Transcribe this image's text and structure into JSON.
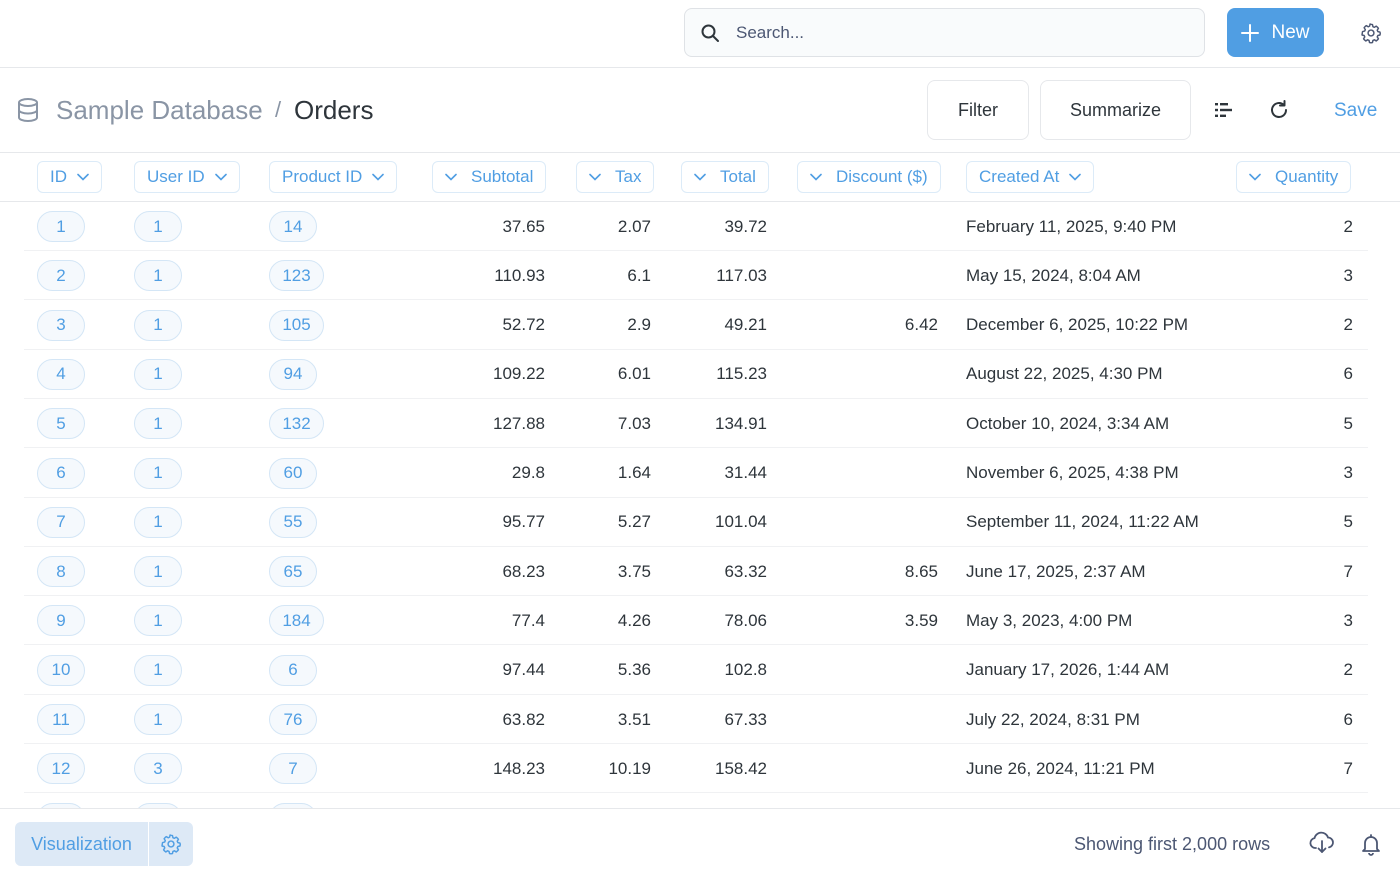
{
  "topbar": {
    "search_placeholder": "Search...",
    "new_label": "New"
  },
  "header": {
    "breadcrumb_db": "Sample Database",
    "breadcrumb_sep": "/",
    "title": "Orders",
    "filter_label": "Filter",
    "summarize_label": "Summarize",
    "save_label": "Save"
  },
  "columns": [
    {
      "label": "ID"
    },
    {
      "label": "User ID"
    },
    {
      "label": "Product ID"
    },
    {
      "label": "Subtotal"
    },
    {
      "label": "Tax"
    },
    {
      "label": "Total"
    },
    {
      "label": "Discount ($)"
    },
    {
      "label": "Created At"
    },
    {
      "label": "Quantity"
    }
  ],
  "rows": [
    {
      "id": "1",
      "user_id": "1",
      "product_id": "14",
      "subtotal": "37.65",
      "tax": "2.07",
      "total": "39.72",
      "discount": "",
      "created_at": "February 11, 2025, 9:40 PM",
      "quantity": "2"
    },
    {
      "id": "2",
      "user_id": "1",
      "product_id": "123",
      "subtotal": "110.93",
      "tax": "6.1",
      "total": "117.03",
      "discount": "",
      "created_at": "May 15, 2024, 8:04 AM",
      "quantity": "3"
    },
    {
      "id": "3",
      "user_id": "1",
      "product_id": "105",
      "subtotal": "52.72",
      "tax": "2.9",
      "total": "49.21",
      "discount": "6.42",
      "created_at": "December 6, 2025, 10:22 PM",
      "quantity": "2"
    },
    {
      "id": "4",
      "user_id": "1",
      "product_id": "94",
      "subtotal": "109.22",
      "tax": "6.01",
      "total": "115.23",
      "discount": "",
      "created_at": "August 22, 2025, 4:30 PM",
      "quantity": "6"
    },
    {
      "id": "5",
      "user_id": "1",
      "product_id": "132",
      "subtotal": "127.88",
      "tax": "7.03",
      "total": "134.91",
      "discount": "",
      "created_at": "October 10, 2024, 3:34 AM",
      "quantity": "5"
    },
    {
      "id": "6",
      "user_id": "1",
      "product_id": "60",
      "subtotal": "29.8",
      "tax": "1.64",
      "total": "31.44",
      "discount": "",
      "created_at": "November 6, 2025, 4:38 PM",
      "quantity": "3"
    },
    {
      "id": "7",
      "user_id": "1",
      "product_id": "55",
      "subtotal": "95.77",
      "tax": "5.27",
      "total": "101.04",
      "discount": "",
      "created_at": "September 11, 2024, 11:22 AM",
      "quantity": "5"
    },
    {
      "id": "8",
      "user_id": "1",
      "product_id": "65",
      "subtotal": "68.23",
      "tax": "3.75",
      "total": "63.32",
      "discount": "8.65",
      "created_at": "June 17, 2025, 2:37 AM",
      "quantity": "7"
    },
    {
      "id": "9",
      "user_id": "1",
      "product_id": "184",
      "subtotal": "77.4",
      "tax": "4.26",
      "total": "78.06",
      "discount": "3.59",
      "created_at": "May 3, 2023, 4:00 PM",
      "quantity": "3"
    },
    {
      "id": "10",
      "user_id": "1",
      "product_id": "6",
      "subtotal": "97.44",
      "tax": "5.36",
      "total": "102.8",
      "discount": "",
      "created_at": "January 17, 2026, 1:44 AM",
      "quantity": "2"
    },
    {
      "id": "11",
      "user_id": "1",
      "product_id": "76",
      "subtotal": "63.82",
      "tax": "3.51",
      "total": "67.33",
      "discount": "",
      "created_at": "July 22, 2024, 8:31 PM",
      "quantity": "6"
    },
    {
      "id": "12",
      "user_id": "3",
      "product_id": "7",
      "subtotal": "148.23",
      "tax": "10.19",
      "total": "158.42",
      "discount": "",
      "created_at": "June 26, 2024, 11:21 PM",
      "quantity": "7"
    }
  ],
  "footer": {
    "visualization_label": "Visualization",
    "rows_text": "Showing first 2,000 rows"
  },
  "colors": {
    "brand": "#509ee3",
    "text_dark": "#2e353b",
    "text_medium": "#4c5773",
    "border": "#e6e8eb"
  },
  "icons": [
    "search-icon",
    "plus-icon",
    "gear-icon",
    "database-icon",
    "list-icon",
    "refresh-icon",
    "chevron-down-icon",
    "download-icon",
    "bell-icon"
  ]
}
